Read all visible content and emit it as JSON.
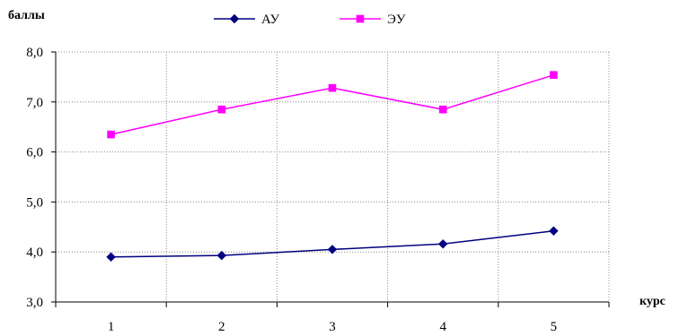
{
  "chart_data": {
    "type": "line",
    "title": "",
    "xlabel": "курс",
    "ylabel": "баллы",
    "categories": [
      "1",
      "2",
      "3",
      "4",
      "5"
    ],
    "ylim": [
      3.0,
      8.0
    ],
    "yticks": [
      "3,0",
      "4,0",
      "5,0",
      "6,0",
      "7,0",
      "8,0"
    ],
    "grid": true,
    "legend_position": "top",
    "series": [
      {
        "name": "АУ",
        "values": [
          3.9,
          3.93,
          4.05,
          4.16,
          4.42
        ],
        "color": "#000080",
        "marker": "diamond"
      },
      {
        "name": "ЭУ",
        "values": [
          6.35,
          6.85,
          7.28,
          6.85,
          7.54
        ],
        "color": "#ff00ff",
        "marker": "square"
      }
    ]
  }
}
